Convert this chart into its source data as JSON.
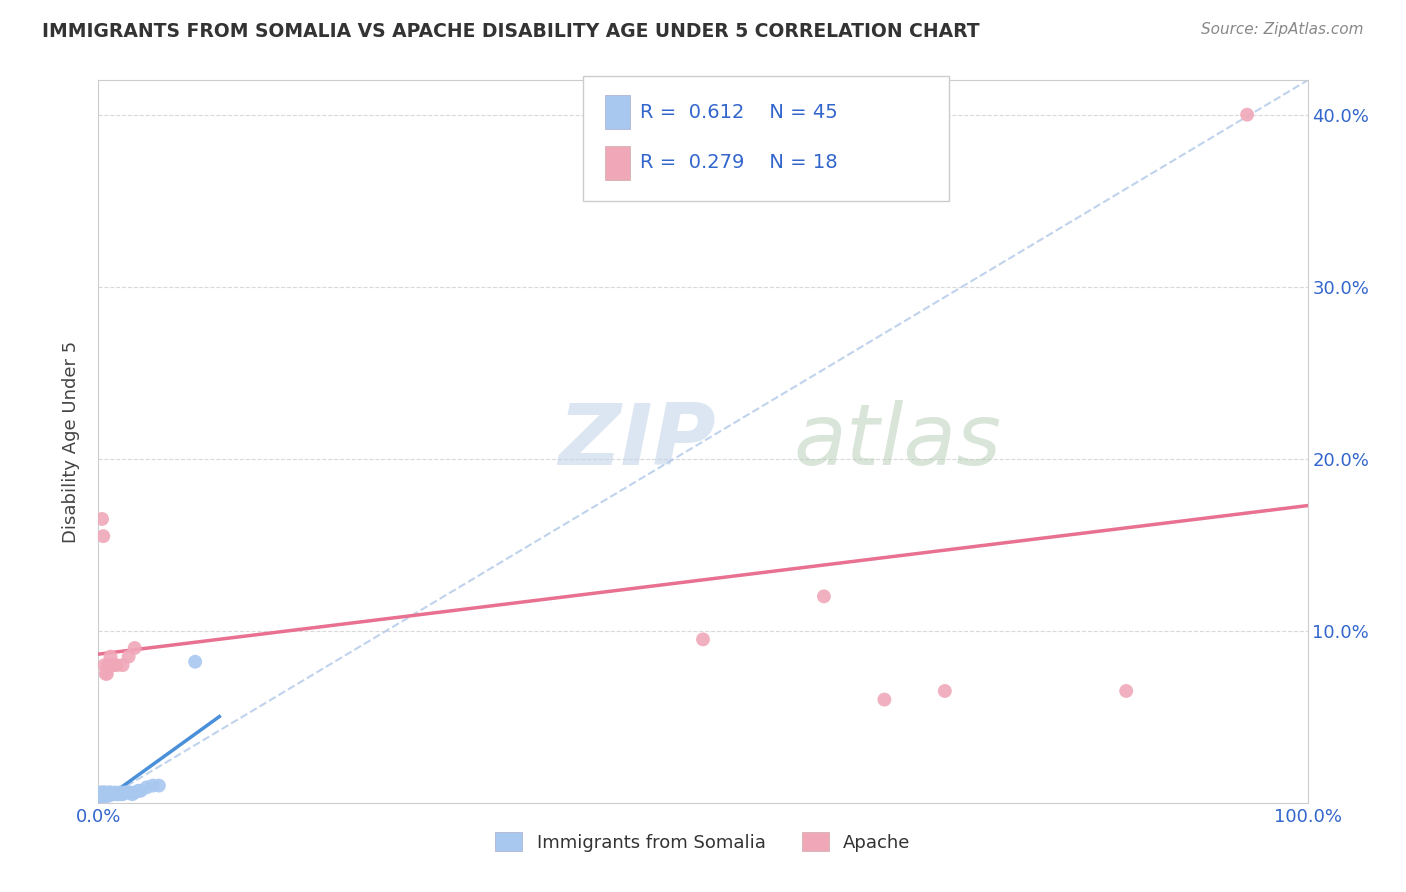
{
  "title": "IMMIGRANTS FROM SOMALIA VS APACHE DISABILITY AGE UNDER 5 CORRELATION CHART",
  "source": "Source: ZipAtlas.com",
  "ylabel": "Disability Age Under 5",
  "xlim": [
    0,
    1.0
  ],
  "ylim": [
    0,
    0.42
  ],
  "ytick_values": [
    0.1,
    0.2,
    0.3,
    0.4
  ],
  "ytick_labels": [
    "10.0%",
    "20.0%",
    "30.0%",
    "40.0%"
  ],
  "somalia_color": "#a8c8f0",
  "apache_color": "#f0a8b8",
  "somalia_line_color": "#4a90d9",
  "apache_line_color": "#e87090",
  "diag_line_color": "#b0c8e8",
  "somalia_points_x": [
    0.001,
    0.001,
    0.002,
    0.002,
    0.002,
    0.003,
    0.003,
    0.003,
    0.004,
    0.004,
    0.005,
    0.005,
    0.005,
    0.006,
    0.006,
    0.006,
    0.007,
    0.007,
    0.008,
    0.008,
    0.009,
    0.009,
    0.01,
    0.01,
    0.011,
    0.012,
    0.013,
    0.014,
    0.015,
    0.016,
    0.017,
    0.018,
    0.019,
    0.02,
    0.022,
    0.024,
    0.026,
    0.028,
    0.03,
    0.033,
    0.035,
    0.04,
    0.045,
    0.05,
    0.08
  ],
  "somalia_points_y": [
    0.004,
    0.005,
    0.004,
    0.005,
    0.006,
    0.004,
    0.005,
    0.006,
    0.005,
    0.005,
    0.004,
    0.005,
    0.006,
    0.004,
    0.005,
    0.006,
    0.005,
    0.005,
    0.004,
    0.005,
    0.005,
    0.006,
    0.005,
    0.006,
    0.005,
    0.005,
    0.005,
    0.006,
    0.005,
    0.005,
    0.005,
    0.006,
    0.005,
    0.005,
    0.006,
    0.006,
    0.006,
    0.005,
    0.006,
    0.007,
    0.007,
    0.009,
    0.01,
    0.01,
    0.082
  ],
  "apache_points_x": [
    0.003,
    0.004,
    0.005,
    0.006,
    0.007,
    0.008,
    0.01,
    0.012,
    0.015,
    0.02,
    0.025,
    0.03,
    0.5,
    0.6,
    0.65,
    0.7,
    0.85,
    0.95
  ],
  "apache_points_y": [
    0.165,
    0.155,
    0.08,
    0.075,
    0.075,
    0.08,
    0.085,
    0.08,
    0.08,
    0.08,
    0.085,
    0.09,
    0.095,
    0.12,
    0.06,
    0.065,
    0.065,
    0.4
  ],
  "bg_color": "#ffffff",
  "grid_color": "#d0d0d0",
  "watermark_zip_color": "#c8d8ec",
  "watermark_atlas_color": "#c8d8c8"
}
